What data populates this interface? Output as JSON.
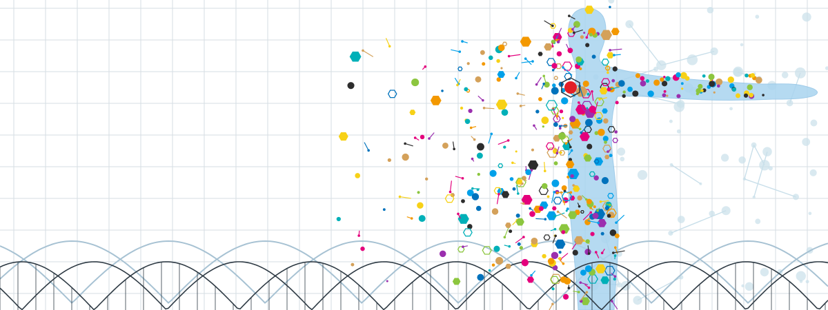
{
  "image": {
    "subject": "human-figure-dissolving-into-molecules",
    "palette": {
      "background": "#ffffff",
      "grid": "#d6dde3",
      "body": "#a9d4ef",
      "body_edge": "#8fc3e6",
      "network": "#c9dfea",
      "helix_dark": "#2e3a44",
      "helix_light": "#a7c2d3",
      "accent_red": "#e31f26",
      "molecule_colors": [
        "#e4007c",
        "#8cc63f",
        "#00a0e9",
        "#f7d117",
        "#9b2fae",
        "#2d2d2d",
        "#0072bc",
        "#f39800",
        "#d4a15a",
        "#00b0b8"
      ]
    }
  }
}
